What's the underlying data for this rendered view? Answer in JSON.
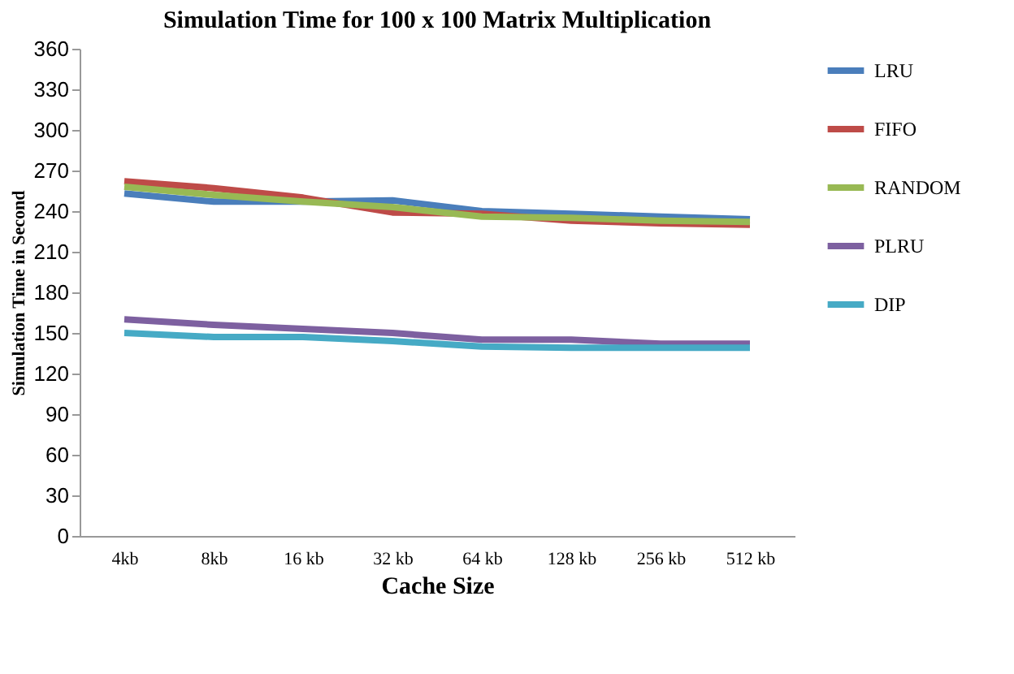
{
  "chart_data": {
    "type": "line",
    "title": "Simulation  Time for  100 x 100 Matrix Multiplication",
    "xlabel": "Cache Size",
    "ylabel": "Simulation Time in Second",
    "categories": [
      "4kb",
      "8kb",
      "16 kb",
      "32 kb",
      "64 kb",
      "128 kb",
      "256 kb",
      "512 kb"
    ],
    "series": [
      {
        "name": "LRU",
        "color": "#4a7ebb",
        "values": [
          253,
          247,
          247,
          248,
          240,
          238,
          236,
          234
        ]
      },
      {
        "name": "FIFO",
        "color": "#be4b48",
        "values": [
          262,
          257,
          250,
          239,
          238,
          233,
          231,
          230
        ]
      },
      {
        "name": "RANDOM",
        "color": "#98b954",
        "values": [
          258,
          252,
          247,
          243,
          236,
          235,
          233,
          232
        ]
      },
      {
        "name": "PLRU",
        "color": "#7d60a0",
        "values": [
          160,
          156,
          153,
          150,
          145,
          145,
          142,
          142
        ]
      },
      {
        "name": "DIP",
        "color": "#46aac5",
        "values": [
          150,
          147,
          147,
          144,
          140,
          139,
          139,
          139
        ]
      }
    ],
    "ylim": [
      0,
      360
    ],
    "yticks": [
      0,
      30,
      60,
      90,
      120,
      150,
      180,
      210,
      240,
      270,
      300,
      330,
      360
    ],
    "grid": false,
    "legend": "right",
    "marker": "none",
    "line_style": "solid"
  }
}
